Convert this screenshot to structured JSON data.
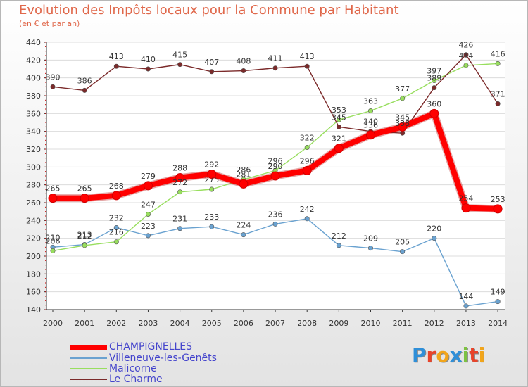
{
  "chart_data": {
    "type": "line",
    "title": "Evolution des Impôts locaux pour la Commune par Habitant",
    "subtitle": "(en € et par an)",
    "xlabel": "",
    "ylabel": "",
    "x": [
      "2000",
      "2001",
      "2002",
      "2003",
      "2004",
      "2005",
      "2006",
      "2007",
      "2008",
      "2009",
      "2010",
      "2011",
      "2012",
      "2013",
      "2014"
    ],
    "ylim": [
      140,
      440
    ],
    "yticks": [
      140,
      160,
      180,
      200,
      220,
      240,
      260,
      280,
      300,
      320,
      340,
      360,
      380,
      400,
      420,
      440
    ],
    "grid": true,
    "legend": "bottom-left",
    "series": [
      {
        "name": "CHAMPIGNELLES",
        "color": "#ff0000",
        "values": [
          265,
          265,
          268,
          279,
          288,
          292,
          281,
          290,
          296,
          321,
          336,
          345,
          360,
          254,
          253
        ]
      },
      {
        "name": "Villeneuve-les-Genêts",
        "color": "#6aa2d0",
        "values": [
          210,
          213,
          232,
          223,
          231,
          233,
          224,
          236,
          242,
          212,
          209,
          205,
          220,
          144,
          149
        ]
      },
      {
        "name": "Malicorne",
        "color": "#98de5e",
        "values": [
          206,
          212,
          216,
          247,
          272,
          275,
          286,
          296,
          322,
          353,
          363,
          377,
          397,
          414,
          416
        ]
      },
      {
        "name": "Le Charme",
        "color": "#7b2a2a",
        "values": [
          390,
          386,
          413,
          410,
          415,
          407,
          408,
          411,
          413,
          345,
          340,
          338,
          389,
          426,
          371
        ]
      }
    ]
  }
}
